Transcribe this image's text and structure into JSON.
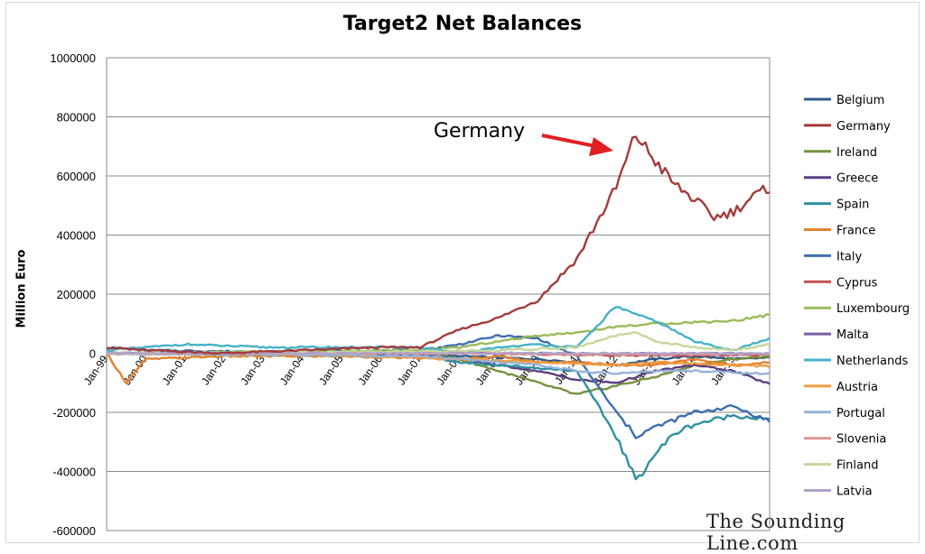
{
  "chart_data": {
    "type": "line",
    "title": "Target2 Net Balances",
    "ylabel": "Million Euro",
    "xlabel": "",
    "ylim": [
      -600000,
      1000000
    ],
    "y_ticks": [
      1000000,
      800000,
      600000,
      400000,
      200000,
      0,
      -200000,
      -400000,
      -600000
    ],
    "x_range": [
      "Jan-99",
      "Dec-15"
    ],
    "x_tick_labels": [
      "Jan-99",
      "Jan-00",
      "Jan-01",
      "Jan-02",
      "Jan-03",
      "Jan-04",
      "Jan-05",
      "Jan-06",
      "Jan-07",
      "Jan-08",
      "Jan-09",
      "Jan-10",
      "Jan-11",
      "Jan-12",
      "Jan-13",
      "Jan-14",
      "Jan-15"
    ],
    "grid": true,
    "legend_position": "right",
    "annotation": {
      "text": "Germany",
      "points_to": "Jan-12 Germany peak"
    },
    "watermark": "The Sounding Line.com",
    "series": [
      {
        "name": "Belgium",
        "color": "#2e5a87",
        "points": [
          [
            "Jan-99",
            0
          ],
          [
            "Jan-05",
            -5000
          ],
          [
            "Jan-08",
            -10000
          ],
          [
            "Jan-10",
            -20000
          ],
          [
            "Jan-12",
            -40000
          ],
          [
            "Jan-13",
            -20000
          ],
          [
            "Jan-14",
            -10000
          ],
          [
            "Jan-15",
            -20000
          ],
          [
            "Dec-15",
            -15000
          ]
        ]
      },
      {
        "name": "Germany",
        "color": "#a33b3b",
        "points": [
          [
            "Jan-99",
            20000
          ],
          [
            "Jan-00",
            10000
          ],
          [
            "Jan-01",
            5000
          ],
          [
            "Jan-02",
            0
          ],
          [
            "Jan-03",
            5000
          ],
          [
            "Jan-04",
            10000
          ],
          [
            "Jan-05",
            15000
          ],
          [
            "Jan-06",
            20000
          ],
          [
            "Jan-07",
            20000
          ],
          [
            "Jan-08",
            80000
          ],
          [
            "Jan-09",
            120000
          ],
          [
            "Jan-10",
            180000
          ],
          [
            "Jan-11",
            320000
          ],
          [
            "Jan-12",
            560000
          ],
          [
            "Jul-12",
            740000
          ],
          [
            "Jan-13",
            650000
          ],
          [
            "Jul-13",
            570000
          ],
          [
            "Jan-14",
            520000
          ],
          [
            "Jul-14",
            460000
          ],
          [
            "Jan-15",
            480000
          ],
          [
            "Jul-15",
            530000
          ],
          [
            "Dec-15",
            560000
          ]
        ]
      },
      {
        "name": "Ireland",
        "color": "#76923c",
        "points": [
          [
            "Jan-99",
            0
          ],
          [
            "Jan-07",
            0
          ],
          [
            "Jan-08",
            -20000
          ],
          [
            "Jan-09",
            -60000
          ],
          [
            "Jan-10",
            -100000
          ],
          [
            "Jan-11",
            -140000
          ],
          [
            "Jan-12",
            -110000
          ],
          [
            "Jan-13",
            -80000
          ],
          [
            "Jan-14",
            -40000
          ],
          [
            "Jan-15",
            -20000
          ],
          [
            "Dec-15",
            -10000
          ]
        ]
      },
      {
        "name": "Greece",
        "color": "#5c3e82",
        "points": [
          [
            "Jan-99",
            0
          ],
          [
            "Jan-07",
            -10000
          ],
          [
            "Jan-08",
            -20000
          ],
          [
            "Jan-09",
            -40000
          ],
          [
            "Jan-10",
            -60000
          ],
          [
            "Jan-11",
            -90000
          ],
          [
            "Jan-12",
            -100000
          ],
          [
            "Jan-13",
            -60000
          ],
          [
            "Jan-14",
            -40000
          ],
          [
            "Jan-15",
            -60000
          ],
          [
            "Dec-15",
            -105000
          ]
        ]
      },
      {
        "name": "Spain",
        "color": "#2f8fa5",
        "points": [
          [
            "Jan-99",
            0
          ],
          [
            "Jan-07",
            -10000
          ],
          [
            "Jan-08",
            -30000
          ],
          [
            "Jan-09",
            -40000
          ],
          [
            "Jan-10",
            -50000
          ],
          [
            "Jan-11",
            -60000
          ],
          [
            "Jan-12",
            -280000
          ],
          [
            "Jul-12",
            -430000
          ],
          [
            "Jan-13",
            -340000
          ],
          [
            "Jul-13",
            -270000
          ],
          [
            "Jan-14",
            -240000
          ],
          [
            "Jan-15",
            -210000
          ],
          [
            "Dec-15",
            -225000
          ]
        ]
      },
      {
        "name": "France",
        "color": "#e0832e",
        "points": [
          [
            "Jan-99",
            0
          ],
          [
            "Jul-99",
            -100000
          ],
          [
            "Jan-00",
            -20000
          ],
          [
            "Jan-02",
            -10000
          ],
          [
            "Jan-05",
            -10000
          ],
          [
            "Jan-08",
            -20000
          ],
          [
            "Jan-09",
            -10000
          ],
          [
            "Jan-10",
            -30000
          ],
          [
            "Jan-11",
            -30000
          ],
          [
            "Jan-12",
            -40000
          ],
          [
            "Jan-13",
            -40000
          ],
          [
            "Jan-14",
            -20000
          ],
          [
            "Jan-15",
            -40000
          ],
          [
            "Dec-15",
            -30000
          ]
        ]
      },
      {
        "name": "Italy",
        "color": "#3d6fb0",
        "points": [
          [
            "Jan-99",
            20000
          ],
          [
            "Jan-00",
            10000
          ],
          [
            "Jan-03",
            5000
          ],
          [
            "Jan-07",
            10000
          ],
          [
            "Jan-08",
            30000
          ],
          [
            "Jan-09",
            60000
          ],
          [
            "Jan-10",
            50000
          ],
          [
            "Jan-11",
            -10000
          ],
          [
            "Jan-12",
            -200000
          ],
          [
            "Jul-12",
            -280000
          ],
          [
            "Jan-13",
            -250000
          ],
          [
            "Jan-14",
            -200000
          ],
          [
            "Jan-15",
            -180000
          ],
          [
            "Dec-15",
            -230000
          ]
        ]
      },
      {
        "name": "Cyprus",
        "color": "#c2534f",
        "points": [
          [
            "Jan-99",
            0
          ],
          [
            "Jan-08",
            0
          ],
          [
            "Jan-11",
            -5000
          ],
          [
            "Jan-13",
            -8000
          ],
          [
            "Dec-15",
            -6000
          ]
        ]
      },
      {
        "name": "Luxembourg",
        "color": "#9bbb59",
        "points": [
          [
            "Jan-99",
            0
          ],
          [
            "Jan-07",
            10000
          ],
          [
            "Jan-08",
            20000
          ],
          [
            "Jan-09",
            40000
          ],
          [
            "Jan-10",
            60000
          ],
          [
            "Jan-11",
            70000
          ],
          [
            "Jan-12",
            90000
          ],
          [
            "Jan-13",
            100000
          ],
          [
            "Jan-14",
            105000
          ],
          [
            "Jan-15",
            110000
          ],
          [
            "Dec-15",
            130000
          ]
        ]
      },
      {
        "name": "Malta",
        "color": "#7a5ea6",
        "points": [
          [
            "Jan-99",
            0
          ],
          [
            "Jan-08",
            0
          ],
          [
            "Jan-12",
            -2000
          ],
          [
            "Dec-15",
            -1000
          ]
        ]
      },
      {
        "name": "Netherlands",
        "color": "#46b2c8",
        "points": [
          [
            "Jan-99",
            10000
          ],
          [
            "Jan-01",
            30000
          ],
          [
            "Jan-03",
            20000
          ],
          [
            "Jan-05",
            20000
          ],
          [
            "Jan-07",
            20000
          ],
          [
            "Jan-08",
            0
          ],
          [
            "Jan-09",
            20000
          ],
          [
            "Jan-10",
            30000
          ],
          [
            "Jan-11",
            20000
          ],
          [
            "Jan-12",
            160000
          ],
          [
            "Jul-12",
            130000
          ],
          [
            "Jan-13",
            110000
          ],
          [
            "Jan-14",
            40000
          ],
          [
            "Jan-15",
            10000
          ],
          [
            "Dec-15",
            50000
          ]
        ]
      },
      {
        "name": "Austria",
        "color": "#f29b40",
        "points": [
          [
            "Jan-99",
            0
          ],
          [
            "Jan-05",
            -5000
          ],
          [
            "Jan-08",
            -20000
          ],
          [
            "Jan-10",
            -30000
          ],
          [
            "Jan-12",
            -40000
          ],
          [
            "Jan-13",
            -30000
          ],
          [
            "Jan-15",
            -40000
          ],
          [
            "Dec-15",
            -45000
          ]
        ]
      },
      {
        "name": "Portugal",
        "color": "#95b3d7",
        "points": [
          [
            "Jan-99",
            0
          ],
          [
            "Jan-07",
            -10000
          ],
          [
            "Jan-08",
            -20000
          ],
          [
            "Jan-10",
            -40000
          ],
          [
            "Jan-11",
            -60000
          ],
          [
            "Jan-12",
            -70000
          ],
          [
            "Jan-13",
            -60000
          ],
          [
            "Jan-14",
            -60000
          ],
          [
            "Jan-15",
            -65000
          ],
          [
            "Dec-15",
            -70000
          ]
        ]
      },
      {
        "name": "Slovenia",
        "color": "#d99694",
        "points": [
          [
            "Jan-99",
            0
          ],
          [
            "Jan-08",
            0
          ],
          [
            "Jan-12",
            -5000
          ],
          [
            "Dec-15",
            -3000
          ]
        ]
      },
      {
        "name": "Finland",
        "color": "#c4d79b",
        "points": [
          [
            "Jan-99",
            0
          ],
          [
            "Jan-07",
            5000
          ],
          [
            "Jan-09",
            10000
          ],
          [
            "Jan-11",
            20000
          ],
          [
            "Jan-12",
            60000
          ],
          [
            "Jul-12",
            70000
          ],
          [
            "Jan-13",
            40000
          ],
          [
            "Jan-14",
            20000
          ],
          [
            "Jan-15",
            10000
          ],
          [
            "Dec-15",
            30000
          ]
        ]
      },
      {
        "name": "Latvia",
        "color": "#b2a2c7",
        "points": [
          [
            "Jan-99",
            0
          ],
          [
            "Jan-14",
            0
          ],
          [
            "Dec-15",
            -2000
          ]
        ]
      }
    ]
  }
}
